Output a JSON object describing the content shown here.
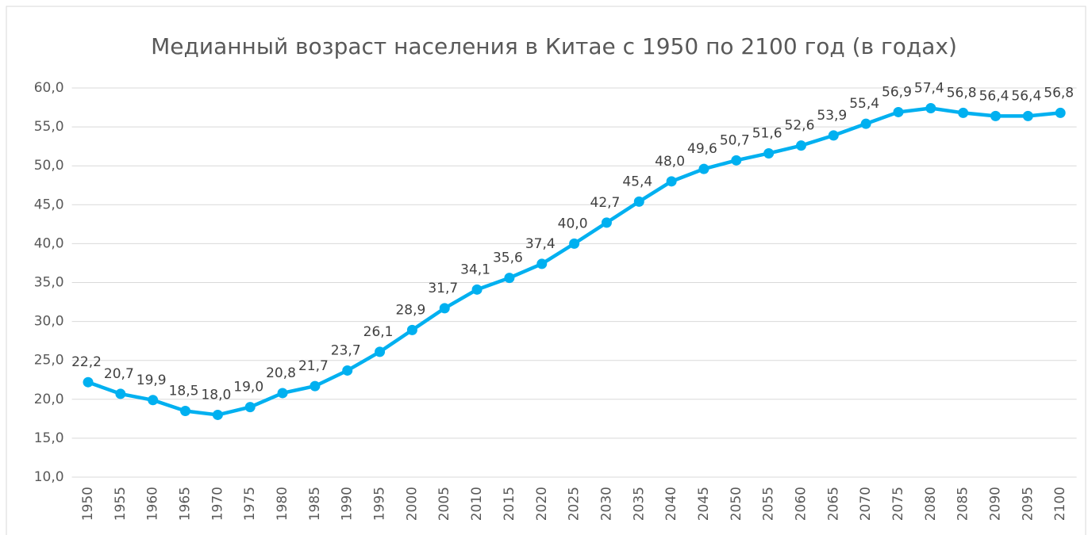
{
  "chart_data": {
    "type": "line",
    "title": "Медианный возраст населения в Китае с 1950 по 2100 год (в годах)",
    "categories": [
      "1950",
      "1955",
      "1960",
      "1965",
      "1970",
      "1975",
      "1980",
      "1985",
      "1990",
      "1995",
      "2000",
      "2005",
      "2010",
      "2015",
      "2020",
      "2025",
      "2030",
      "2035",
      "2040",
      "2045",
      "2050",
      "2055",
      "2060",
      "2065",
      "2070",
      "2075",
      "2080",
      "2085",
      "2090",
      "2095",
      "2100"
    ],
    "values": [
      22.2,
      20.7,
      19.9,
      18.5,
      18.0,
      19.0,
      20.8,
      21.7,
      23.7,
      26.1,
      28.9,
      31.7,
      34.1,
      35.6,
      37.4,
      40.0,
      42.7,
      45.4,
      48.0,
      49.6,
      50.7,
      51.6,
      52.6,
      53.9,
      55.4,
      56.9,
      57.4,
      56.8,
      56.4,
      56.4,
      56.8
    ],
    "value_labels": [
      "22,2",
      "20,7",
      "19,9",
      "18,5",
      "18,0",
      "19,0",
      "20,8",
      "21,7",
      "23,7",
      "26,1",
      "28,9",
      "31,7",
      "34,1",
      "35,6",
      "37,4",
      "40,0",
      "42,7",
      "45,4",
      "48,0",
      "49,6",
      "50,7",
      "51,6",
      "52,6",
      "53,9",
      "55,4",
      "56,9",
      "57,4",
      "56,8",
      "56,4",
      "56,4",
      "56,8"
    ],
    "color": "#00b0f0",
    "ylim": [
      10,
      60
    ],
    "yticks": [
      {
        "value": 10,
        "label": "10,0"
      },
      {
        "value": 15,
        "label": "15,0"
      },
      {
        "value": 20,
        "label": "20,0"
      },
      {
        "value": 25,
        "label": "25,0"
      },
      {
        "value": 30,
        "label": "30,0"
      },
      {
        "value": 35,
        "label": "35,0"
      },
      {
        "value": 40,
        "label": "40,0"
      },
      {
        "value": 45,
        "label": "45,0"
      },
      {
        "value": 50,
        "label": "50,0"
      },
      {
        "value": 55,
        "label": "55,0"
      },
      {
        "value": 60,
        "label": "60,0"
      }
    ],
    "grid": true
  }
}
